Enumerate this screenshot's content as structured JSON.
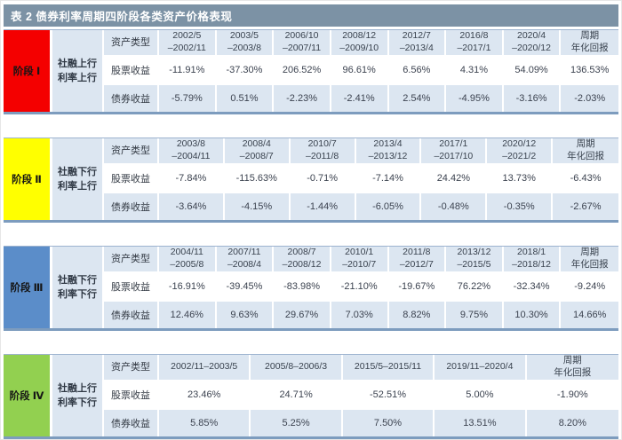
{
  "title": "表 2  债券利率周期四阶段各类资产价格表现",
  "labels": {
    "asset_type": "资产类型",
    "stock": "股票收益",
    "bond": "债券收益",
    "cycle": "周期\n年化回报"
  },
  "colors": {
    "title_bar": "#7c92a5",
    "row_light": "#dce6f1",
    "row_white": "#ffffff",
    "section_border_bottom": "#7d9cbe",
    "stage1": "#f40000",
    "stage2": "#ffff00",
    "stage3": "#5b8dc9",
    "stage4": "#92d050"
  },
  "sections": [
    {
      "stage": "阶段 Ⅰ",
      "condition": "社融上行\n利率上行",
      "color": "#f40000",
      "periods": [
        "2002/5\n–2002/11",
        "2003/5\n–2003/8",
        "2006/10\n–2007/11",
        "2008/12\n–2009/10",
        "2012/7\n–2013/4",
        "2016/8\n–2017/1",
        "2020/4\n–2020/12"
      ],
      "stock": [
        "-11.91%",
        "-37.30%",
        "206.52%",
        "96.61%",
        "6.56%",
        "4.31%",
        "54.09%",
        "136.53%"
      ],
      "bond": [
        "-5.79%",
        "0.51%",
        "-2.23%",
        "-2.41%",
        "2.54%",
        "-4.95%",
        "-3.16%",
        "-2.03%"
      ]
    },
    {
      "stage": "阶段 Ⅱ",
      "condition": "社融下行\n利率上行",
      "color": "#ffff00",
      "periods": [
        "2003/8\n–2004/11",
        "2008/4\n–2008/7",
        "2010/7\n–2011/8",
        "2013/4\n–2013/12",
        "2017/1\n–2017/10",
        "2020/12\n–2021/2"
      ],
      "stock": [
        "-7.84%",
        "-115.63%",
        "-0.71%",
        "-7.14%",
        "24.42%",
        "13.73%",
        "-6.43%"
      ],
      "bond": [
        "-3.64%",
        "-4.15%",
        "-1.44%",
        "-6.05%",
        "-0.48%",
        "-0.35%",
        "-2.67%"
      ]
    },
    {
      "stage": "阶段 Ⅲ",
      "condition": "社融下行\n利率下行",
      "color": "#5b8dc9",
      "periods": [
        "2004/11\n–2005/8",
        "2007/11\n–2008/4",
        "2008/7\n–2008/12",
        "2010/1\n–2010/7",
        "2011/8\n–2012/7",
        "2013/12\n–2015/5",
        "2018/1\n–2018/12"
      ],
      "stock": [
        "-16.91%",
        "-39.45%",
        "-83.98%",
        "-21.10%",
        "-19.67%",
        "76.22%",
        "-32.34%",
        "-9.24%"
      ],
      "bond": [
        "12.46%",
        "9.63%",
        "29.67%",
        "7.03%",
        "8.82%",
        "9.75%",
        "10.30%",
        "14.66%"
      ]
    },
    {
      "stage": "阶段 Ⅳ",
      "condition": "社融上行\n利率下行",
      "color": "#92d050",
      "periods": [
        "2002/11–2003/5",
        "2005/8–2006/3",
        "2015/5–2015/11",
        "2019/11–2020/4"
      ],
      "stock": [
        "23.46%",
        "24.71%",
        "-52.51%",
        "5.00%",
        "-1.90%"
      ],
      "bond": [
        "5.85%",
        "5.25%",
        "7.50%",
        "13.51%",
        "8.20%"
      ]
    }
  ]
}
